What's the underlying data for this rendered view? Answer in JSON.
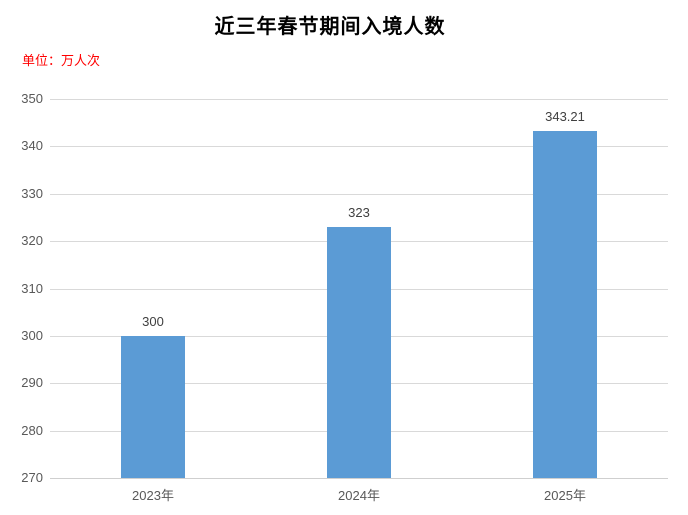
{
  "title": "近三年春节期间入境人数",
  "unit_label": "单位：万人次",
  "colors": {
    "bar": "#5B9BD5",
    "unit_text": "#FF0000",
    "title_text": "#000000",
    "gridline": "#D9D9D9",
    "axis_line": "#CFCFCF",
    "tick_text": "#595959",
    "value_text": "#404040"
  },
  "chart_data": {
    "type": "bar",
    "title": "近三年春节期间入境人数",
    "xlabel": "",
    "ylabel": "单位：万人次",
    "categories": [
      "2023年",
      "2024年",
      "2025年"
    ],
    "values": [
      300,
      323,
      343.21
    ],
    "value_labels": [
      "300",
      "323",
      "343.21"
    ],
    "ylim": [
      270,
      350
    ],
    "yticks": [
      270,
      280,
      290,
      300,
      310,
      320,
      330,
      340,
      350
    ],
    "grid": true,
    "legend": false
  }
}
